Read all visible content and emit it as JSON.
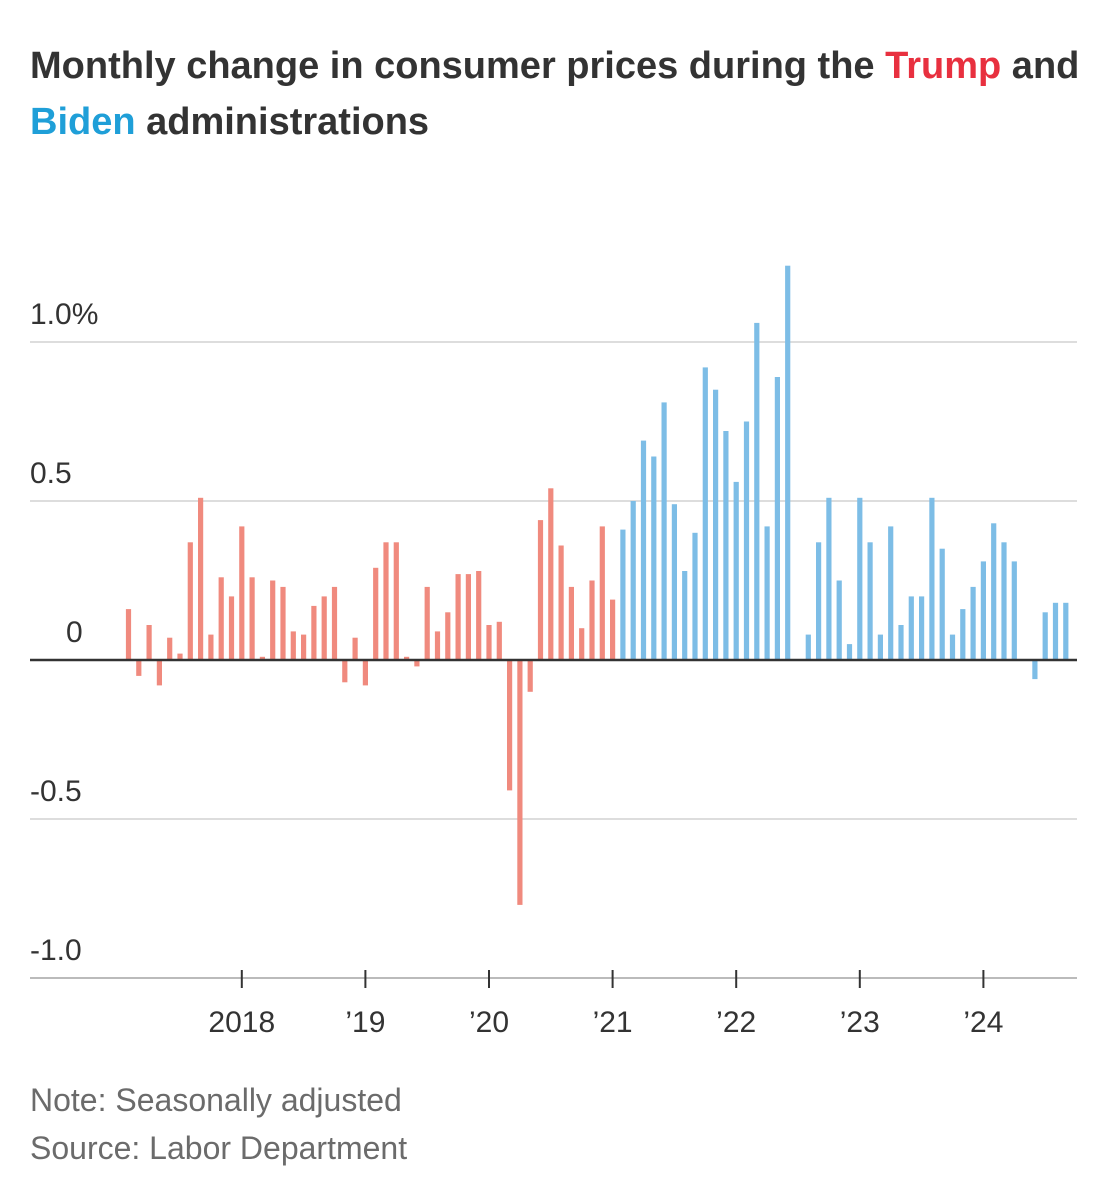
{
  "title": {
    "part1": "Monthly change in consumer prices during the ",
    "trump": "Trump",
    "part2": " and ",
    "biden": "Biden",
    "part3": " administrations"
  },
  "colors": {
    "trump": "#f08a7e",
    "biden": "#7dbde6",
    "trump_text": "#e8303f",
    "biden_text": "#1f9fd8",
    "grid": "#dddddd",
    "axis": "#333333"
  },
  "chart_data": {
    "type": "bar",
    "ylim": [
      -1.0,
      1.25
    ],
    "y_ticks": [
      {
        "value": 1.0,
        "label": "1.0%"
      },
      {
        "value": 0.5,
        "label": "0.5"
      },
      {
        "value": 0,
        "label": "0"
      },
      {
        "value": -0.5,
        "label": "-0.5"
      },
      {
        "value": -1.0,
        "label": "-1.0"
      }
    ],
    "x_ticks": [
      "2018",
      "’19",
      "’20",
      "’21",
      "’22",
      "’23",
      "’24"
    ],
    "grid": true,
    "series": [
      {
        "name": "Trump",
        "start": "2017-02",
        "values": [
          0.16,
          -0.05,
          0.11,
          -0.08,
          0.07,
          0.02,
          0.37,
          0.51,
          0.08,
          0.26,
          0.2,
          0.42,
          0.26,
          0.01,
          0.25,
          0.23,
          0.09,
          0.08,
          0.17,
          0.2,
          0.23,
          -0.07,
          0.07,
          -0.08,
          0.29,
          0.37,
          0.37,
          0.01,
          -0.02,
          0.23,
          0.09,
          0.15,
          0.27,
          0.27,
          0.28,
          0.11,
          0.12,
          -0.41,
          -0.77,
          -0.1,
          0.44,
          0.54,
          0.36,
          0.23,
          0.1,
          0.25,
          0.42,
          0.19
        ]
      },
      {
        "name": "Biden",
        "start": "2021-02",
        "values": [
          0.41,
          0.5,
          0.69,
          0.64,
          0.81,
          0.49,
          0.28,
          0.4,
          0.92,
          0.85,
          0.72,
          0.56,
          0.75,
          1.06,
          0.42,
          0.89,
          1.24,
          0.0,
          0.08,
          0.37,
          0.51,
          0.25,
          0.05,
          0.51,
          0.37,
          0.08,
          0.42,
          0.11,
          0.2,
          0.2,
          0.51,
          0.35,
          0.08,
          0.16,
          0.23,
          0.31,
          0.43,
          0.37,
          0.31,
          0.0,
          -0.06,
          0.15,
          0.18,
          0.18
        ]
      }
    ]
  },
  "footer": {
    "note": "Note: Seasonally adjusted",
    "source": "Source: Labor Department"
  }
}
